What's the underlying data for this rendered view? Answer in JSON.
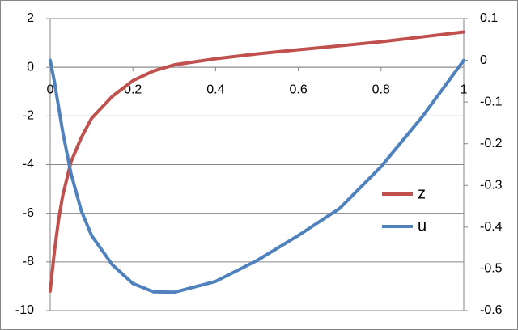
{
  "chart_data": {
    "type": "line",
    "x": [
      0,
      0.01,
      0.02,
      0.03,
      0.05,
      0.075,
      0.1,
      0.15,
      0.2,
      0.25,
      0.3,
      0.4,
      0.5,
      0.6,
      0.7,
      0.8,
      0.9,
      1.0
    ],
    "series": [
      {
        "name": "z",
        "color": "#c0504d",
        "values": [
          -9.2,
          -7.6,
          -6.3,
          -5.3,
          -3.9,
          -2.9,
          -2.1,
          -1.2,
          -0.55,
          -0.15,
          0.1,
          0.35,
          0.55,
          0.72,
          0.88,
          1.05,
          1.25,
          1.45
        ]
      },
      {
        "name": "u",
        "color": "#4f81bd",
        "axis": "y2",
        "values": [
          0,
          -0.05,
          -0.11,
          -0.17,
          -0.27,
          -0.36,
          -0.42,
          -0.49,
          -0.535,
          -0.555,
          -0.556,
          -0.53,
          -0.48,
          -0.42,
          -0.355,
          -0.255,
          -0.135,
          0
        ]
      }
    ],
    "xlim": [
      0,
      1
    ],
    "xticks": [
      0,
      0.2,
      0.4,
      0.6,
      0.8,
      1
    ],
    "ylim": [
      -10,
      2
    ],
    "yticks": [
      2,
      0,
      -2,
      -4,
      -6,
      -8,
      -10
    ],
    "y2lim": [
      -0.6,
      0.1
    ],
    "y2ticks": [
      0.1,
      0,
      -0.1,
      -0.2,
      -0.3,
      -0.4,
      -0.5,
      -0.6
    ],
    "grid": true,
    "legend": "right"
  }
}
